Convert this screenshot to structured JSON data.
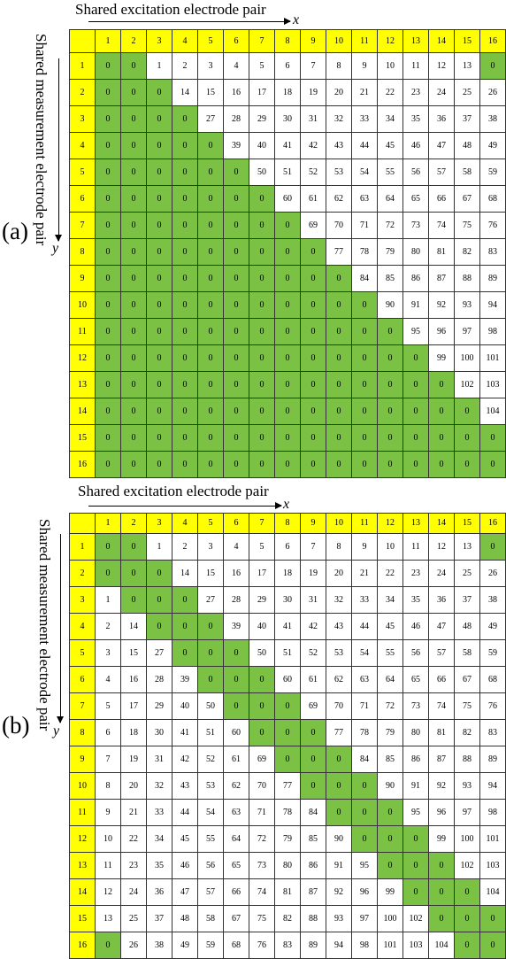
{
  "panels": [
    {
      "label": "(a)",
      "x_title": "Shared excitation electrode pair",
      "y_title": "Shared measurement electrode pair",
      "x_axis_symbol": "x",
      "y_axis_symbol": "y",
      "rows": [
        [
          "0",
          "0",
          "1",
          "2",
          "3",
          "4",
          "5",
          "6",
          "7",
          "8",
          "9",
          "10",
          "11",
          "12",
          "13",
          "0"
        ],
        [
          "0",
          "0",
          "0",
          "14",
          "15",
          "16",
          "17",
          "18",
          "19",
          "20",
          "21",
          "22",
          "23",
          "24",
          "25",
          "26"
        ],
        [
          "0",
          "0",
          "0",
          "0",
          "27",
          "28",
          "29",
          "30",
          "31",
          "32",
          "33",
          "34",
          "35",
          "36",
          "37",
          "38"
        ],
        [
          "0",
          "0",
          "0",
          "0",
          "0",
          "39",
          "40",
          "41",
          "42",
          "43",
          "44",
          "45",
          "46",
          "47",
          "48",
          "49"
        ],
        [
          "0",
          "0",
          "0",
          "0",
          "0",
          "0",
          "50",
          "51",
          "52",
          "53",
          "54",
          "55",
          "56",
          "57",
          "58",
          "59"
        ],
        [
          "0",
          "0",
          "0",
          "0",
          "0",
          "0",
          "0",
          "60",
          "61",
          "62",
          "63",
          "64",
          "65",
          "66",
          "67",
          "68"
        ],
        [
          "0",
          "0",
          "0",
          "0",
          "0",
          "0",
          "0",
          "0",
          "69",
          "70",
          "71",
          "72",
          "73",
          "74",
          "75",
          "76"
        ],
        [
          "0",
          "0",
          "0",
          "0",
          "0",
          "0",
          "0",
          "0",
          "0",
          "77",
          "78",
          "79",
          "80",
          "81",
          "82",
          "83"
        ],
        [
          "0",
          "0",
          "0",
          "0",
          "0",
          "0",
          "0",
          "0",
          "0",
          "0",
          "84",
          "85",
          "86",
          "87",
          "88",
          "89"
        ],
        [
          "0",
          "0",
          "0",
          "0",
          "0",
          "0",
          "0",
          "0",
          "0",
          "0",
          "0",
          "90",
          "91",
          "92",
          "93",
          "94"
        ],
        [
          "0",
          "0",
          "0",
          "0",
          "0",
          "0",
          "0",
          "0",
          "0",
          "0",
          "0",
          "0",
          "95",
          "96",
          "97",
          "98"
        ],
        [
          "0",
          "0",
          "0",
          "0",
          "0",
          "0",
          "0",
          "0",
          "0",
          "0",
          "0",
          "0",
          "0",
          "99",
          "100",
          "101"
        ],
        [
          "0",
          "0",
          "0",
          "0",
          "0",
          "0",
          "0",
          "0",
          "0",
          "0",
          "0",
          "0",
          "0",
          "0",
          "102",
          "103"
        ],
        [
          "0",
          "0",
          "0",
          "0",
          "0",
          "0",
          "0",
          "0",
          "0",
          "0",
          "0",
          "0",
          "0",
          "0",
          "0",
          "104"
        ],
        [
          "0",
          "0",
          "0",
          "0",
          "0",
          "0",
          "0",
          "0",
          "0",
          "0",
          "0",
          "0",
          "0",
          "0",
          "0",
          "0"
        ],
        [
          "0",
          "0",
          "0",
          "0",
          "0",
          "0",
          "0",
          "0",
          "0",
          "0",
          "0",
          "0",
          "0",
          "0",
          "0",
          "0"
        ]
      ]
    },
    {
      "label": "(b)",
      "x_title": "Shared excitation electrode pair",
      "y_title": "Shared measurement electrode pair",
      "x_axis_symbol": "x",
      "y_axis_symbol": "y",
      "rows": [
        [
          "0",
          "0",
          "1",
          "2",
          "3",
          "4",
          "5",
          "6",
          "7",
          "8",
          "9",
          "10",
          "11",
          "12",
          "13",
          "0"
        ],
        [
          "0",
          "0",
          "0",
          "14",
          "15",
          "16",
          "17",
          "18",
          "19",
          "20",
          "21",
          "22",
          "23",
          "24",
          "25",
          "26"
        ],
        [
          "1",
          "0",
          "0",
          "0",
          "27",
          "28",
          "29",
          "30",
          "31",
          "32",
          "33",
          "34",
          "35",
          "36",
          "37",
          "38"
        ],
        [
          "2",
          "14",
          "0",
          "0",
          "0",
          "39",
          "40",
          "41",
          "42",
          "43",
          "44",
          "45",
          "46",
          "47",
          "48",
          "49"
        ],
        [
          "3",
          "15",
          "27",
          "0",
          "0",
          "0",
          "50",
          "51",
          "52",
          "53",
          "54",
          "55",
          "56",
          "57",
          "58",
          "59"
        ],
        [
          "4",
          "16",
          "28",
          "39",
          "0",
          "0",
          "0",
          "60",
          "61",
          "62",
          "63",
          "64",
          "65",
          "66",
          "67",
          "68"
        ],
        [
          "5",
          "17",
          "29",
          "40",
          "50",
          "0",
          "0",
          "0",
          "69",
          "70",
          "71",
          "72",
          "73",
          "74",
          "75",
          "76"
        ],
        [
          "6",
          "18",
          "30",
          "41",
          "51",
          "60",
          "0",
          "0",
          "0",
          "77",
          "78",
          "79",
          "80",
          "81",
          "82",
          "83"
        ],
        [
          "7",
          "19",
          "31",
          "42",
          "52",
          "61",
          "69",
          "0",
          "0",
          "0",
          "84",
          "85",
          "86",
          "87",
          "88",
          "89"
        ],
        [
          "8",
          "20",
          "32",
          "43",
          "53",
          "62",
          "70",
          "77",
          "0",
          "0",
          "0",
          "90",
          "91",
          "92",
          "93",
          "94"
        ],
        [
          "9",
          "21",
          "33",
          "44",
          "54",
          "63",
          "71",
          "78",
          "84",
          "0",
          "0",
          "0",
          "95",
          "96",
          "97",
          "98"
        ],
        [
          "10",
          "22",
          "34",
          "45",
          "55",
          "64",
          "72",
          "79",
          "85",
          "90",
          "0",
          "0",
          "0",
          "99",
          "100",
          "101"
        ],
        [
          "11",
          "23",
          "35",
          "46",
          "56",
          "65",
          "73",
          "80",
          "86",
          "91",
          "95",
          "0",
          "0",
          "0",
          "102",
          "103"
        ],
        [
          "12",
          "24",
          "36",
          "47",
          "57",
          "66",
          "74",
          "81",
          "87",
          "92",
          "96",
          "99",
          "0",
          "0",
          "0",
          "104"
        ],
        [
          "13",
          "25",
          "37",
          "48",
          "58",
          "67",
          "75",
          "82",
          "88",
          "93",
          "97",
          "100",
          "102",
          "0",
          "0",
          "0"
        ],
        [
          "0",
          "26",
          "38",
          "49",
          "59",
          "68",
          "76",
          "83",
          "89",
          "94",
          "98",
          "101",
          "103",
          "104",
          "0",
          "0"
        ]
      ]
    }
  ],
  "colors": {
    "header": "#ffff00",
    "zero_cell": "#7bc143",
    "value_cell": "#ffffff",
    "border": "#333333"
  }
}
